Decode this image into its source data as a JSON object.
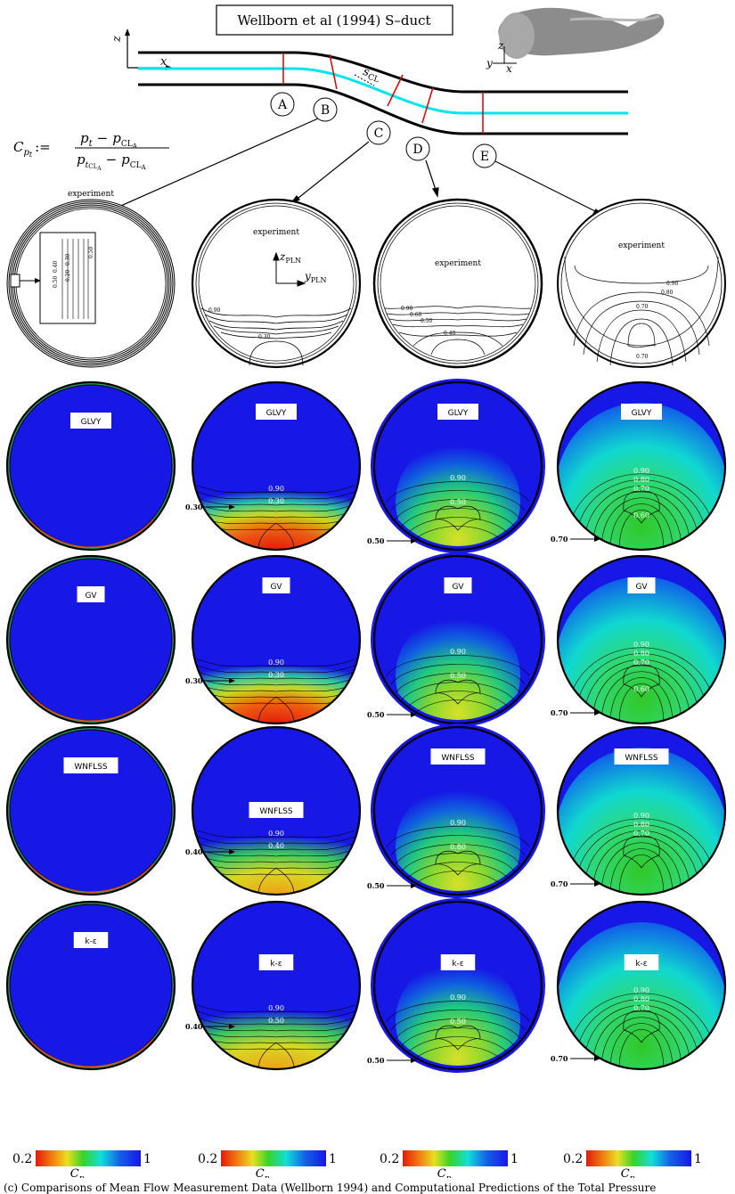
{
  "figure": {
    "title": "Wellborn et al (1994) S–duct",
    "axis_labels": {
      "z": "z",
      "x": "x",
      "y": "y"
    },
    "centerline_label": "s",
    "centerline_subscript": "CL",
    "plane_axis_z": "z",
    "plane_axis_y": "y",
    "plane_subscript": "PLN",
    "formula": {
      "lhs": "C",
      "lhs_sub": "p",
      "lhs_subsub": "t",
      "assign": ":=",
      "num_a": "p",
      "num_a_sub": "t",
      "num_minus": "−",
      "num_b": "p",
      "num_b_sub": "CL",
      "num_b_subsub": "A",
      "den_a": "p",
      "den_a_sub": "t",
      "den_a_subsub": "CL",
      "den_a_subsubsub": "A",
      "den_minus": "−",
      "den_b": "p",
      "den_b_sub": "CL",
      "den_b_subsub": "A"
    },
    "stations": [
      "A",
      "B",
      "C",
      "D",
      "E"
    ],
    "row_labels": [
      "experiment",
      "GLVY",
      "GV",
      "WNFLSS",
      "k-ε"
    ],
    "experiment_labels": {
      "A": [
        "0.50",
        "0.40",
        "0.30",
        "0.20",
        "0.50"
      ],
      "B": [
        "0.90",
        "0.30"
      ],
      "C": [
        "0.90",
        "0.60",
        "0.50",
        "0.40"
      ],
      "D": [
        "0.90",
        "0.80",
        "0.70",
        "0.70"
      ]
    },
    "contour_labels": {
      "GLVY": {
        "C": [
          "0.90",
          "0.30"
        ],
        "D": [
          "0.90",
          "0.50"
        ],
        "E": [
          "0.90",
          "0.80",
          "0.70",
          "0.60"
        ]
      },
      "GV": {
        "C": [
          "0.90",
          "0.30"
        ],
        "D": [
          "0.90",
          "0.50"
        ],
        "E": [
          "0.90",
          "0.80",
          "0.70",
          "0.60"
        ]
      },
      "WNFLSS": {
        "C": [
          "0.90",
          "0.40"
        ],
        "D": [
          "0.90",
          "0.80"
        ],
        "E": [
          "0.90",
          "0.80",
          "0.70"
        ]
      },
      "k-ε": {
        "C": [
          "0.90",
          "0.50"
        ],
        "D": [
          "0.90",
          "0.50"
        ],
        "E": [
          "0.90",
          "0.80",
          "0.70"
        ]
      }
    },
    "arrow_labels": {
      "GLVY": [
        "0.30",
        "0.50",
        "0.70"
      ],
      "GV": [
        "0.30",
        "0.50",
        "0.70"
      ],
      "WNFLSS": [
        "0.40",
        "0.50",
        "0.70"
      ],
      "k-ε": [
        "0.40",
        "0.50",
        "0.70"
      ]
    },
    "colorbar": {
      "min": "0.2",
      "max": "1",
      "label": "C",
      "label_sub": "p",
      "label_subsub": "t"
    },
    "colors": {
      "duct": "#000000",
      "centerline": "#00e5ee",
      "station": "#e00000",
      "field_low": "#e32b0c",
      "field_mid": "#38d32a",
      "field_high": "#1717e6"
    }
  },
  "caption": "(c) Comparisons of Mean Flow Measurement Data (Wellborn 1994) and Computational Predictions of the Total Pressure"
}
